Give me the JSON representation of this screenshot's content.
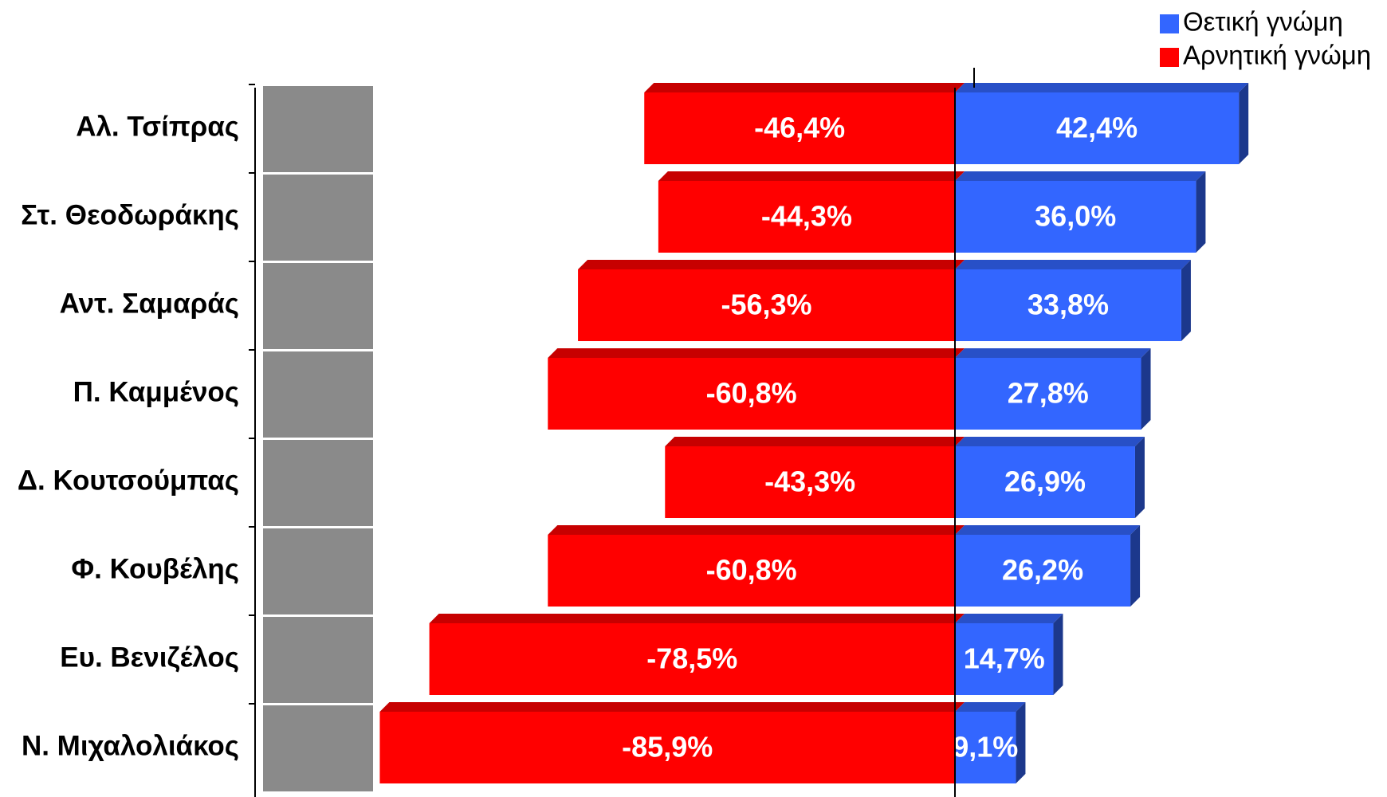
{
  "chart_data": {
    "type": "diverging-bar",
    "categories": [
      "Αλ. Τσίπρας",
      "Στ. Θεοδωράκης",
      "Αντ. Σαμαράς",
      "Π. Καμμένος",
      "Δ. Κουτσούμπας",
      "Φ. Κουβέλης",
      "Ευ. Βενιζέλος",
      "Ν. Μιχαλολιάκος"
    ],
    "series": [
      {
        "name": "Θετική γνώμη",
        "color": "#3366ff",
        "values": [
          42.4,
          36.0,
          33.8,
          27.8,
          26.9,
          26.2,
          14.7,
          9.1
        ],
        "value_labels": [
          "42,4%",
          "36,0%",
          "33,8%",
          "27,8%",
          "26,9%",
          "26,2%",
          "14,7%",
          "9,1%"
        ]
      },
      {
        "name": "Αρνητική γνώμη",
        "color": "#ff0000",
        "values": [
          -46.4,
          -44.3,
          -56.3,
          -60.8,
          -43.3,
          -60.8,
          -78.5,
          -85.9
        ],
        "value_labels": [
          "-46,4%",
          "-44,3%",
          "-56,3%",
          "-60,8%",
          "-43,3%",
          "-60,8%",
          "-78,5%",
          "-85,9%"
        ]
      }
    ],
    "legend": "top-right"
  }
}
